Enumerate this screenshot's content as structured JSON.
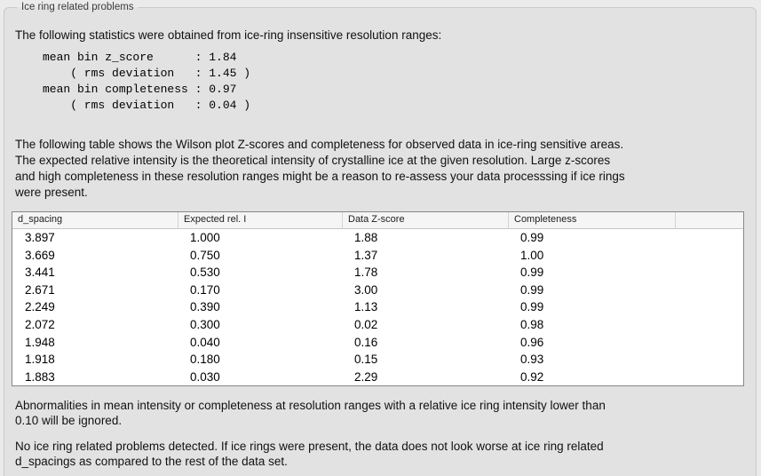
{
  "panel": {
    "title": "Ice ring related problems"
  },
  "intro_text": "The following statistics were obtained from ice-ring insensitive resolution ranges:",
  "stats_block": "mean bin z_score      : 1.84\n    ( rms deviation   : 1.45 )\nmean bin completeness : 0.97\n    ( rms deviation   : 0.04 )",
  "table_description": "The following table shows the Wilson plot Z-scores and completeness for observed data in ice-ring sensitive areas.\nThe expected relative intensity is the theoretical intensity of crystalline ice at the given resolution. Large z-scores\nand high completeness in these resolution ranges might be a reason to re-assess your data processsing if ice rings\nwere present.",
  "table": {
    "columns": [
      "d_spacing",
      "Expected rel. I",
      "Data Z-score",
      "Completeness",
      ""
    ],
    "rows": [
      [
        "3.897",
        "1.000",
        "1.88",
        "0.99"
      ],
      [
        "3.669",
        "0.750",
        "1.37",
        "1.00"
      ],
      [
        "3.441",
        "0.530",
        "1.78",
        "0.99"
      ],
      [
        "2.671",
        "0.170",
        "3.00",
        "0.99"
      ],
      [
        "2.249",
        "0.390",
        "1.13",
        "0.99"
      ],
      [
        "2.072",
        "0.300",
        "0.02",
        "0.98"
      ],
      [
        "1.948",
        "0.040",
        "0.16",
        "0.96"
      ],
      [
        "1.918",
        "0.180",
        "0.15",
        "0.93"
      ],
      [
        "1.883",
        "0.030",
        "2.29",
        "0.92"
      ]
    ]
  },
  "notes": {
    "ignore_note": "Abnormalities in mean intensity or completeness at resolution ranges with a relative ice ring intensity lower than\n0.10 will be ignored.",
    "conclusion": "No ice ring related problems detected. If ice rings were present, the data does not look worse at ice ring related\nd_spacings as compared to the rest of the data set."
  },
  "colors": {
    "outer_background": "#ebebeb",
    "panel_background": "#e2e2e2",
    "panel_border": "#c9c9c9",
    "table_border": "#878787",
    "table_header_background": "#f5f5f5",
    "body_text": "#111111"
  }
}
